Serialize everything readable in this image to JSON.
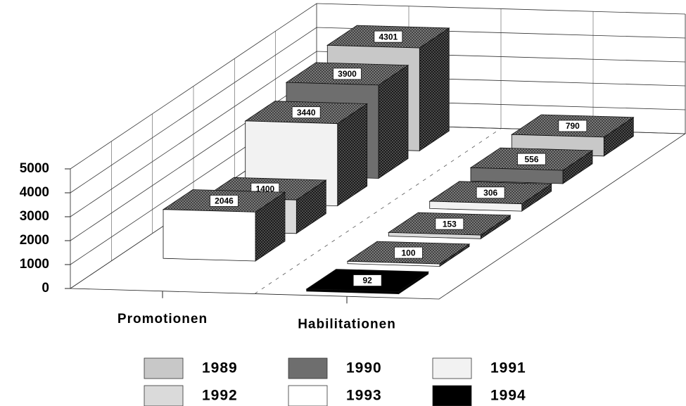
{
  "chart_data": {
    "type": "bar3d",
    "categories": [
      "Promotionen",
      "Habilitationen"
    ],
    "series": [
      {
        "name": "1989",
        "color": "#c8c8c8",
        "values": [
          4301,
          790
        ]
      },
      {
        "name": "1990",
        "color": "#6e6e6e",
        "values": [
          3900,
          556
        ]
      },
      {
        "name": "1991",
        "color": "#f2f2f2",
        "values": [
          3440,
          306
        ]
      },
      {
        "name": "1992",
        "color": "#dadada",
        "values": [
          1400,
          153
        ]
      },
      {
        "name": "1993",
        "color": "#ffffff",
        "values": [
          2046,
          100
        ]
      },
      {
        "name": "1994",
        "color": "#000000",
        "values": [
          null,
          92
        ]
      }
    ],
    "ylim": [
      0,
      5000
    ],
    "yticks": [
      0,
      1000,
      2000,
      3000,
      4000,
      5000
    ],
    "grid": true
  }
}
